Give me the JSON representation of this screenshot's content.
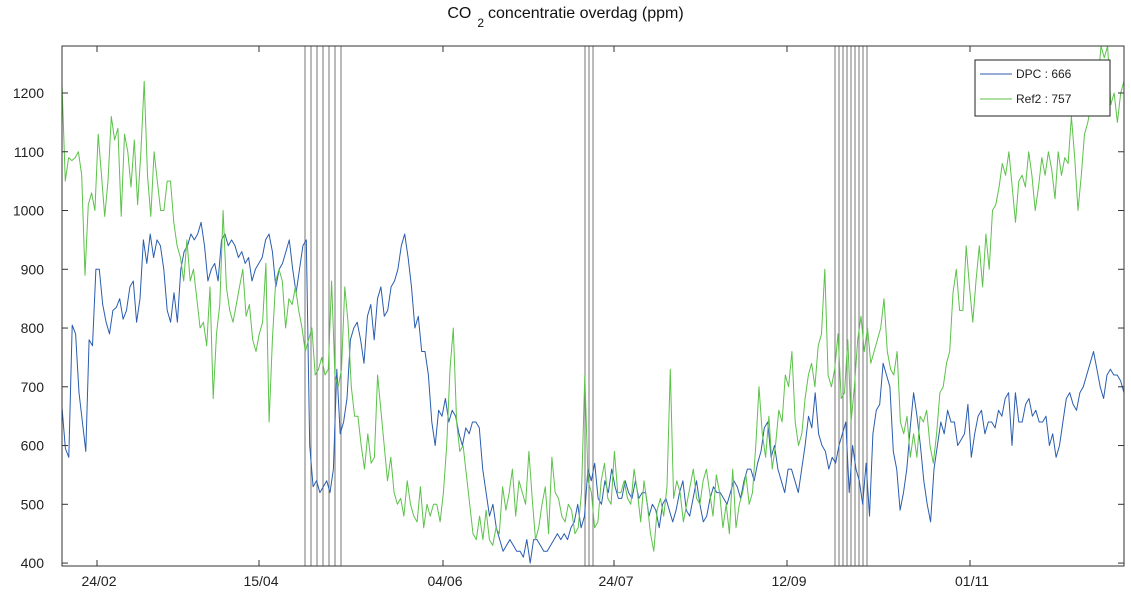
{
  "chart_data": {
    "type": "line",
    "title_main": "CO",
    "title_sub": "2",
    "title_rest": "concentratie overdag (ppm)",
    "xlabel": "",
    "ylabel": "",
    "x_tick_labels": [
      "24/02",
      "15/04",
      "04/06",
      "24/07",
      "12/09",
      "01/11"
    ],
    "y_ticks": [
      400,
      500,
      600,
      700,
      800,
      900,
      1000,
      1100,
      1200
    ],
    "ylim": [
      395,
      1280
    ],
    "grid": false,
    "legend_position": "top-right",
    "colors": {
      "dpc": "#2a5db0",
      "ref2": "#5cc24a",
      "marker_lines": "#555555"
    },
    "series": [
      {
        "name": "DPC : 666",
        "values": [
          665,
          595,
          580,
          805,
          790,
          690,
          640,
          590,
          780,
          770,
          900,
          900,
          840,
          810,
          790,
          830,
          835,
          850,
          815,
          830,
          870,
          880,
          810,
          850,
          950,
          910,
          960,
          920,
          950,
          940,
          900,
          830,
          810,
          860,
          810,
          900,
          930,
          940,
          960,
          950,
          960,
          980,
          940,
          880,
          900,
          910,
          880,
          950,
          960,
          940,
          950,
          940,
          920,
          930,
          910,
          920,
          880,
          900,
          910,
          920,
          950,
          960,
          930,
          870,
          900,
          910,
          930,
          950,
          900,
          860,
          900,
          940,
          950,
          600,
          530,
          540,
          520,
          530,
          540,
          520,
          560,
          730,
          620,
          640,
          680,
          780,
          800,
          810,
          780,
          740,
          820,
          840,
          780,
          850,
          870,
          820,
          830,
          870,
          880,
          900,
          940,
          960,
          920,
          870,
          800,
          820,
          760,
          760,
          720,
          640,
          600,
          660,
          650,
          680,
          640,
          660,
          650,
          620,
          600,
          630,
          620,
          640,
          640,
          630,
          560,
          520,
          480,
          500,
          460,
          440,
          420,
          430,
          440,
          430,
          420,
          420,
          410,
          440,
          400,
          440,
          440,
          430,
          420,
          420,
          430,
          440,
          450,
          440,
          450,
          440,
          460,
          470,
          500,
          460,
          480,
          560,
          540,
          570,
          510,
          500,
          540,
          520,
          560,
          530,
          510,
          510,
          540,
          520,
          510,
          540,
          510,
          520,
          520,
          480,
          500,
          490,
          460,
          500,
          510,
          490,
          470,
          490,
          520,
          540,
          490,
          480,
          510,
          540,
          500,
          470,
          480,
          510,
          530,
          520,
          520,
          510,
          500,
          520,
          540,
          530,
          510,
          540,
          560,
          560,
          540,
          570,
          590,
          630,
          640,
          580,
          600,
          560,
          540,
          520,
          560,
          560,
          540,
          520,
          560,
          600,
          650,
          630,
          690,
          620,
          600,
          590,
          560,
          580,
          570,
          600,
          620,
          640,
          520,
          600,
          560,
          540,
          500,
          570,
          480,
          620,
          660,
          670,
          740,
          720,
          700,
          590,
          560,
          490,
          520,
          560,
          630,
          690,
          650,
          600,
          540,
          500,
          470,
          560,
          600,
          640,
          620,
          660,
          640,
          640,
          600,
          610,
          620,
          670,
          580,
          620,
          650,
          660,
          620,
          640,
          640,
          630,
          660,
          650,
          680,
          690,
          600,
          690,
          640,
          640,
          670,
          680,
          650,
          660,
          640,
          640,
          650,
          600,
          620,
          580,
          600,
          640,
          680,
          690,
          670,
          660,
          690,
          700,
          720,
          740,
          760,
          730,
          700,
          680,
          720,
          730,
          720,
          720,
          710,
          690
        ]
      },
      {
        "name": "Ref2 : 757",
        "values": [
          1215,
          1050,
          1090,
          1085,
          1090,
          1100,
          1060,
          890,
          1010,
          1030,
          1000,
          1130,
          1060,
          990,
          1050,
          1160,
          1120,
          1140,
          990,
          1130,
          1100,
          1040,
          1120,
          1010,
          1100,
          1220,
          1060,
          990,
          1100,
          1050,
          1000,
          1000,
          1050,
          1050,
          980,
          940,
          920,
          880,
          950,
          880,
          900,
          850,
          800,
          810,
          770,
          870,
          680,
          790,
          840,
          1000,
          870,
          830,
          810,
          840,
          870,
          900,
          820,
          840,
          780,
          760,
          790,
          810,
          910,
          640,
          780,
          880,
          900,
          880,
          800,
          850,
          840,
          870,
          830,
          800,
          760,
          780,
          800,
          720,
          730,
          750,
          720,
          730,
          880,
          720,
          700,
          730,
          870,
          810,
          700,
          650,
          650,
          600,
          560,
          620,
          570,
          580,
          720,
          660,
          600,
          540,
          580,
          520,
          500,
          510,
          480,
          540,
          500,
          480,
          470,
          530,
          460,
          500,
          480,
          500,
          500,
          470,
          520,
          600,
          730,
          800,
          640,
          590,
          600,
          550,
          500,
          450,
          440,
          480,
          440,
          490,
          440,
          430,
          460,
          450,
          530,
          490,
          520,
          560,
          480,
          540,
          520,
          500,
          590,
          510,
          440,
          460,
          500,
          530,
          450,
          580,
          520,
          510,
          480,
          470,
          500,
          490,
          450,
          460,
          520,
          720,
          540,
          520,
          460,
          470,
          540,
          570,
          510,
          500,
          590,
          520,
          520,
          540,
          510,
          500,
          560,
          520,
          470,
          540,
          500,
          450,
          420,
          490,
          510,
          480,
          530,
          730,
          510,
          540,
          520,
          470,
          500,
          530,
          560,
          510,
          500,
          540,
          560,
          520,
          480,
          550,
          520,
          460,
          500,
          450,
          560,
          460,
          500,
          520,
          550,
          500,
          520,
          600,
          700,
          620,
          580,
          650,
          560,
          600,
          660,
          640,
          720,
          700,
          760,
          640,
          600,
          620,
          680,
          720,
          740,
          700,
          770,
          790,
          900,
          720,
          700,
          730,
          790,
          680,
          690,
          780,
          640,
          700,
          780,
          820,
          760,
          800,
          740,
          760,
          780,
          800,
          850,
          760,
          730,
          720,
          760,
          640,
          620,
          650,
          580,
          620,
          580,
          650,
          640,
          660,
          600,
          570,
          620,
          690,
          700,
          740,
          760,
          860,
          900,
          830,
          830,
          940,
          870,
          810,
          880,
          940,
          870,
          960,
          900,
          1000,
          1010,
          1040,
          1080,
          1060,
          1100,
          1040,
          980,
          1050,
          1060,
          1040,
          1100,
          1060,
          1000,
          1040,
          1090,
          1060,
          1100,
          1070,
          1020,
          1100,
          1060,
          1090,
          1080,
          1160,
          1090,
          1000,
          1060,
          1130,
          1150,
          1180,
          1200,
          1210,
          1280,
          1260,
          1290,
          1180,
          1200,
          1150,
          1200,
          1220
        ]
      }
    ]
  }
}
